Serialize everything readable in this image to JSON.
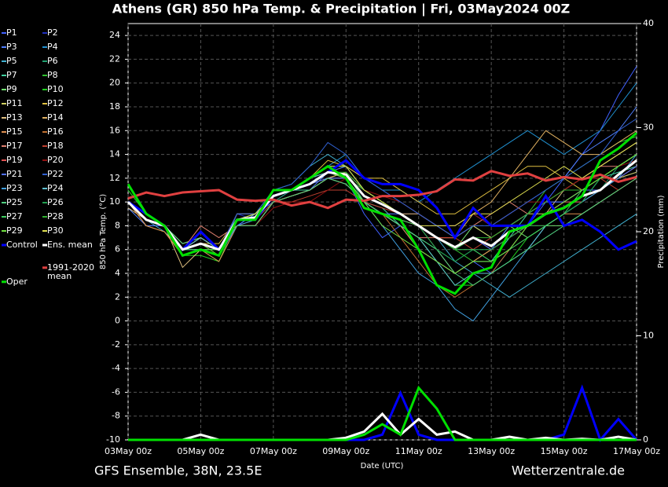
{
  "chart_data": {
    "type": "line",
    "title": "Athens  (GR)  850 hPa Temp. & Precipitation | Fri, 03May2024 00Z",
    "y_label": "850 hPa Temp. (°C)",
    "y2_label": "Precipitation (mm)",
    "x_label": "Date (UTC)",
    "footer_left": "GFS Ensemble, 38N, 23.5E",
    "footer_right": "Wetterzentrale.de",
    "categories": [
      "03May 00z",
      null,
      null,
      null,
      "05May 00z",
      null,
      null,
      null,
      "07May 00z",
      null,
      null,
      null,
      "09May 00z",
      null,
      null,
      null,
      "11May 00z",
      null,
      null,
      null,
      "13May 00z",
      null,
      null,
      null,
      "15May 00z",
      null,
      null,
      null,
      "17May 00z"
    ],
    "ylim": [
      -10,
      25
    ],
    "yticks": [
      -10,
      -8,
      -6,
      -4,
      -2,
      0,
      2,
      4,
      6,
      8,
      10,
      12,
      14,
      16,
      18,
      20,
      22,
      24
    ],
    "y2lim": [
      0,
      40
    ],
    "y2ticks": [
      0,
      10,
      20,
      30,
      40
    ],
    "grid": true,
    "series": [
      {
        "name": "P1",
        "color": "#4060ff",
        "values": [
          10,
          9,
          8,
          6.5,
          7,
          6,
          8,
          9,
          10.5,
          11,
          12,
          13,
          12,
          9,
          7,
          8,
          6,
          5,
          4,
          5,
          4,
          6,
          8,
          10,
          12,
          14,
          16,
          19,
          21.4
        ]
      },
      {
        "name": "P2",
        "color": "#2030c0",
        "values": [
          10,
          8,
          8,
          6,
          7,
          6,
          9,
          8.5,
          11,
          11,
          11.5,
          12,
          12.5,
          11,
          10,
          9,
          9,
          8,
          7,
          8,
          7,
          8,
          9,
          10,
          10,
          11,
          11,
          12,
          12.5
        ]
      },
      {
        "name": "P3",
        "color": "#5080ff",
        "values": [
          9.5,
          8,
          8,
          6,
          6,
          5.5,
          8,
          9,
          10,
          11,
          11,
          12.5,
          13,
          12,
          11,
          10,
          9,
          8,
          8,
          9,
          8,
          9,
          10,
          11,
          12,
          14,
          15,
          16,
          18
        ]
      },
      {
        "name": "P4",
        "color": "#2090d0",
        "values": [
          10,
          9,
          8,
          6,
          6.5,
          6,
          8.5,
          8.5,
          10.5,
          11,
          12,
          13,
          14,
          12,
          11,
          11,
          10,
          11,
          12,
          13,
          14,
          15,
          16,
          15,
          14,
          15,
          16,
          18,
          20
        ]
      },
      {
        "name": "P5",
        "color": "#40b0d0",
        "values": [
          10,
          8.5,
          7.5,
          6,
          6,
          5.5,
          9,
          9,
          11,
          11.5,
          13,
          14,
          13,
          11,
          10,
          9,
          8,
          7,
          5,
          4,
          3,
          2,
          3,
          4,
          5,
          6,
          7,
          8,
          9
        ]
      },
      {
        "name": "P6",
        "color": "#20a070",
        "values": [
          11,
          9,
          8,
          5.5,
          6,
          5,
          8,
          8.5,
          10,
          11,
          11.5,
          12,
          12.5,
          10,
          9,
          8,
          7,
          6,
          5,
          6,
          5,
          7,
          8,
          9,
          10,
          10,
          11,
          13,
          14
        ]
      },
      {
        "name": "P7",
        "color": "#40d0a0",
        "values": [
          10,
          8.5,
          8,
          6,
          7,
          6,
          9,
          9,
          10.5,
          11,
          11,
          12,
          11.5,
          10,
          9.5,
          8,
          7,
          5,
          4,
          5,
          5,
          7,
          9,
          10,
          11,
          12,
          12,
          12.5,
          13
        ]
      },
      {
        "name": "P8",
        "color": "#30c030",
        "values": [
          10,
          9,
          8,
          6,
          6.5,
          6,
          8,
          8,
          10,
          10.5,
          11,
          12,
          12,
          11,
          10,
          9,
          8,
          7,
          6,
          5,
          6,
          8,
          9,
          11,
          12,
          13,
          14,
          15,
          15.5
        ]
      },
      {
        "name": "P9",
        "color": "#70e070",
        "values": [
          10,
          8.5,
          8,
          6.5,
          7,
          6,
          8.5,
          8.5,
          10.5,
          11,
          12,
          12.5,
          12,
          10,
          9,
          8.5,
          8,
          7,
          6,
          8,
          7,
          8,
          7,
          8,
          8,
          9,
          10,
          11,
          12
        ]
      },
      {
        "name": "P10",
        "color": "#20d020",
        "values": [
          11,
          9,
          8,
          5.5,
          5.5,
          5,
          8.5,
          8.5,
          11,
          11,
          12,
          13,
          12,
          10,
          9,
          8,
          7,
          5,
          3,
          3,
          4,
          5,
          7,
          8,
          9,
          10,
          12,
          13,
          14
        ]
      },
      {
        "name": "P11",
        "color": "#d0d060",
        "values": [
          10,
          8,
          7.5,
          5.5,
          6,
          6,
          8,
          8,
          10,
          10.5,
          11,
          12,
          12.5,
          11,
          10,
          9,
          8,
          7,
          7,
          8,
          7,
          8,
          9,
          9,
          10,
          11,
          11,
          12,
          12.5
        ]
      },
      {
        "name": "P12",
        "color": "#e0c040",
        "values": [
          10,
          9,
          8,
          6,
          6.5,
          6.5,
          8.5,
          9,
          10.5,
          11,
          12,
          13.5,
          13,
          12,
          12,
          11,
          10,
          9,
          9,
          10,
          11,
          12,
          13,
          13,
          12,
          11,
          12,
          13,
          14
        ]
      },
      {
        "name": "P13",
        "color": "#e0c080",
        "values": [
          9.5,
          8.5,
          8,
          4.5,
          6,
          5.5,
          8,
          8,
          10,
          10.5,
          11,
          12,
          12,
          11,
          10,
          9,
          8,
          6,
          4,
          5,
          6,
          7,
          8,
          9,
          11,
          12,
          13,
          14,
          15
        ]
      },
      {
        "name": "P14",
        "color": "#e0b060",
        "values": [
          10,
          8.5,
          8,
          6,
          7,
          6,
          8.5,
          8.5,
          10.5,
          11,
          11.5,
          12,
          12.5,
          11,
          10,
          9,
          9,
          8,
          7,
          9,
          10,
          12,
          14,
          16,
          15,
          14,
          14,
          15,
          16
        ]
      },
      {
        "name": "P15",
        "color": "#e09050",
        "values": [
          10,
          8,
          7.5,
          5.5,
          6,
          5,
          8,
          8,
          10,
          10.5,
          11,
          12,
          11.5,
          10,
          9,
          8,
          6,
          5,
          4,
          5,
          6,
          7,
          8,
          8,
          9,
          9,
          10,
          11,
          12
        ]
      },
      {
        "name": "P16",
        "color": "#c07030",
        "values": [
          10,
          9,
          8,
          6,
          7,
          6,
          8.5,
          8.5,
          10.5,
          11,
          12,
          13,
          12,
          10,
          9,
          7,
          5,
          3,
          2,
          3,
          4,
          6,
          8,
          9,
          10,
          11,
          12,
          12,
          13
        ]
      },
      {
        "name": "P17",
        "color": "#e08070",
        "values": [
          10,
          8.5,
          8,
          6,
          8,
          7,
          8,
          8,
          10,
          10.5,
          11,
          12,
          12,
          10,
          9,
          8,
          7,
          7,
          7,
          8,
          9,
          10,
          9,
          10,
          11,
          12,
          13,
          13,
          14
        ]
      },
      {
        "name": "P18",
        "color": "#c04030",
        "values": [
          10,
          8.5,
          8,
          6,
          6.5,
          6,
          8,
          8.5,
          10,
          10,
          10.5,
          11,
          11,
          10,
          9.5,
          9,
          8,
          7,
          7,
          6,
          7,
          8,
          9,
          10,
          11,
          12,
          12,
          11,
          12
        ]
      },
      {
        "name": "P19",
        "color": "#e05050",
        "values": [
          10,
          9,
          8,
          6,
          6.5,
          6,
          9,
          9,
          10.5,
          11,
          12,
          12.5,
          12,
          11,
          10,
          9,
          8,
          7,
          6,
          7,
          6,
          7,
          8,
          9,
          10,
          10,
          11,
          12,
          13
        ]
      },
      {
        "name": "P20",
        "color": "#901010",
        "values": [
          10,
          8.5,
          8,
          6,
          6,
          5.5,
          8,
          8,
          9.5,
          10,
          10,
          11,
          12,
          11,
          10.5,
          10,
          9,
          8,
          8,
          9,
          8,
          9,
          10,
          10,
          11,
          12,
          12,
          13,
          13.5
        ]
      },
      {
        "name": "P21",
        "color": "#5070ff",
        "values": [
          10,
          9,
          8,
          6,
          6.5,
          6,
          8.5,
          8.5,
          10.5,
          11,
          11.5,
          12,
          12,
          10,
          9,
          9,
          8,
          7,
          6,
          7,
          6,
          8,
          9,
          10,
          10,
          11,
          11,
          12,
          13
        ]
      },
      {
        "name": "P22",
        "color": "#3060d0",
        "values": [
          10,
          8.5,
          8,
          6,
          6.5,
          6,
          9,
          9,
          11,
          11.5,
          13,
          15,
          14,
          12,
          11,
          10,
          9,
          8,
          7,
          8,
          8,
          9,
          10,
          11,
          12,
          13,
          14,
          16,
          17
        ]
      },
      {
        "name": "P23",
        "color": "#40a0e0",
        "values": [
          10,
          9,
          8,
          6,
          6,
          5.5,
          8,
          8.5,
          10.5,
          11,
          12,
          13,
          12,
          10,
          8,
          6,
          4,
          3,
          1,
          0,
          2,
          4,
          6,
          8,
          9,
          10,
          11,
          12,
          14
        ]
      },
      {
        "name": "P24",
        "color": "#60c0d0",
        "values": [
          10,
          8.5,
          8,
          6,
          7,
          6,
          8.5,
          9,
          10.5,
          11,
          12,
          12.5,
          12,
          10,
          9,
          8,
          7,
          5,
          3,
          4,
          4,
          5,
          6,
          8,
          9,
          10,
          12,
          13,
          14
        ]
      },
      {
        "name": "P25",
        "color": "#50d080",
        "values": [
          10,
          8.5,
          8,
          6,
          6.5,
          6,
          8,
          8,
          10,
          10.5,
          11,
          12,
          11.5,
          10,
          9,
          8,
          7,
          6,
          4,
          3,
          4,
          5,
          6,
          7,
          8,
          9,
          10,
          11,
          12
        ]
      },
      {
        "name": "P26",
        "color": "#20a050",
        "values": [
          10,
          9,
          8,
          6,
          6.5,
          6,
          8.5,
          8.5,
          10.5,
          11,
          11.5,
          12.5,
          12,
          11,
          10,
          9,
          8,
          6,
          5,
          6,
          6,
          7,
          8,
          8,
          9,
          10,
          12,
          13,
          14
        ]
      },
      {
        "name": "P27",
        "color": "#40d060",
        "values": [
          10,
          8.5,
          8,
          6,
          6,
          6,
          8.5,
          9,
          10.5,
          11,
          12,
          13,
          13,
          11,
          10,
          9,
          8,
          7,
          6,
          6,
          5,
          6,
          7,
          8,
          9,
          11,
          12,
          13,
          14
        ]
      },
      {
        "name": "P28",
        "color": "#30b030",
        "values": [
          10,
          9,
          8,
          6,
          6.5,
          6,
          8.5,
          8.5,
          10.5,
          11,
          11.5,
          12.5,
          12.5,
          11,
          10,
          9,
          8,
          7,
          6,
          7,
          7,
          8,
          9,
          10,
          11,
          11,
          12,
          13,
          14
        ]
      },
      {
        "name": "P29",
        "color": "#70e040",
        "values": [
          10,
          8.5,
          8,
          6,
          6.5,
          5.5,
          8.5,
          8.5,
          10.5,
          11,
          11.5,
          12.5,
          12,
          10,
          8,
          7,
          6,
          5,
          4,
          5,
          5,
          6,
          8,
          9,
          10,
          11,
          12,
          13,
          14
        ]
      },
      {
        "name": "P30",
        "color": "#e0e050",
        "values": [
          10,
          8.5,
          8,
          6,
          6.5,
          6,
          8.5,
          9,
          10.5,
          11,
          12,
          13,
          13,
          11,
          10,
          9,
          8,
          8,
          8,
          9,
          9,
          10,
          11,
          12,
          13,
          12,
          13,
          14,
          15
        ]
      },
      {
        "name": "Control",
        "color": "#0000ff",
        "values": [
          10,
          9,
          8,
          6,
          7.5,
          6,
          8.5,
          8.5,
          10.5,
          11,
          11.5,
          12.5,
          13.5,
          12,
          11.5,
          11.5,
          11,
          9.5,
          7,
          9.5,
          8,
          8,
          8,
          10.5,
          8,
          8.5,
          7.5,
          6,
          6.7
        ],
        "precip": [
          0,
          0,
          0,
          0,
          0,
          0,
          0,
          0,
          0,
          0,
          0,
          0,
          0,
          0,
          0.5,
          4.5,
          0.5,
          0,
          0,
          0,
          0,
          0,
          0,
          0,
          0.5,
          5,
          0,
          2,
          0
        ]
      },
      {
        "name": "Ens. mean",
        "color": "#ffffff",
        "values": [
          10,
          8.5,
          8,
          6,
          6.5,
          6,
          8.5,
          8.7,
          10.5,
          11,
          11.5,
          12.5,
          12.3,
          10.5,
          9.8,
          9,
          8,
          7,
          6.2,
          7,
          6.3,
          7.5,
          8,
          9,
          9.5,
          10.5,
          11,
          12.3,
          13.5
        ],
        "precip": [
          0,
          0,
          0,
          0,
          0.5,
          0,
          0,
          0,
          0,
          0,
          0,
          0,
          0.2,
          0.8,
          2.5,
          0.5,
          2,
          0.5,
          0.8,
          0,
          0,
          0.3,
          0,
          0.2,
          0,
          0.1,
          0,
          0.3,
          0
        ]
      },
      {
        "name": "1991-2020 mean",
        "color": "#e04040",
        "values": [
          10.3,
          10.8,
          10.5,
          10.8,
          10.9,
          11,
          10.2,
          10.1,
          10.2,
          9.7,
          10,
          9.5,
          10.2,
          10.1,
          10.5,
          10.5,
          10.6,
          10.9,
          11.9,
          11.8,
          12.6,
          12.2,
          12.4,
          11.8,
          12.1,
          11.9,
          12.3,
          11.7,
          12.1
        ]
      },
      {
        "name": "Oper",
        "color": "#00e000",
        "values": [
          11.5,
          9,
          8,
          5.5,
          6,
          5.5,
          8.5,
          8.5,
          11,
          11,
          12,
          13,
          12,
          9.5,
          9,
          8.5,
          6,
          3,
          2.3,
          4,
          4.5,
          7.5,
          8,
          9,
          9.5,
          10.5,
          13.5,
          14.5,
          15.8
        ],
        "precip": [
          0,
          0,
          0,
          0,
          0,
          0,
          0,
          0,
          0,
          0,
          0,
          0,
          0,
          0.5,
          1.5,
          0.5,
          5,
          3,
          0,
          0,
          0,
          0,
          0,
          0,
          0,
          0,
          0,
          0,
          0
        ]
      }
    ]
  }
}
